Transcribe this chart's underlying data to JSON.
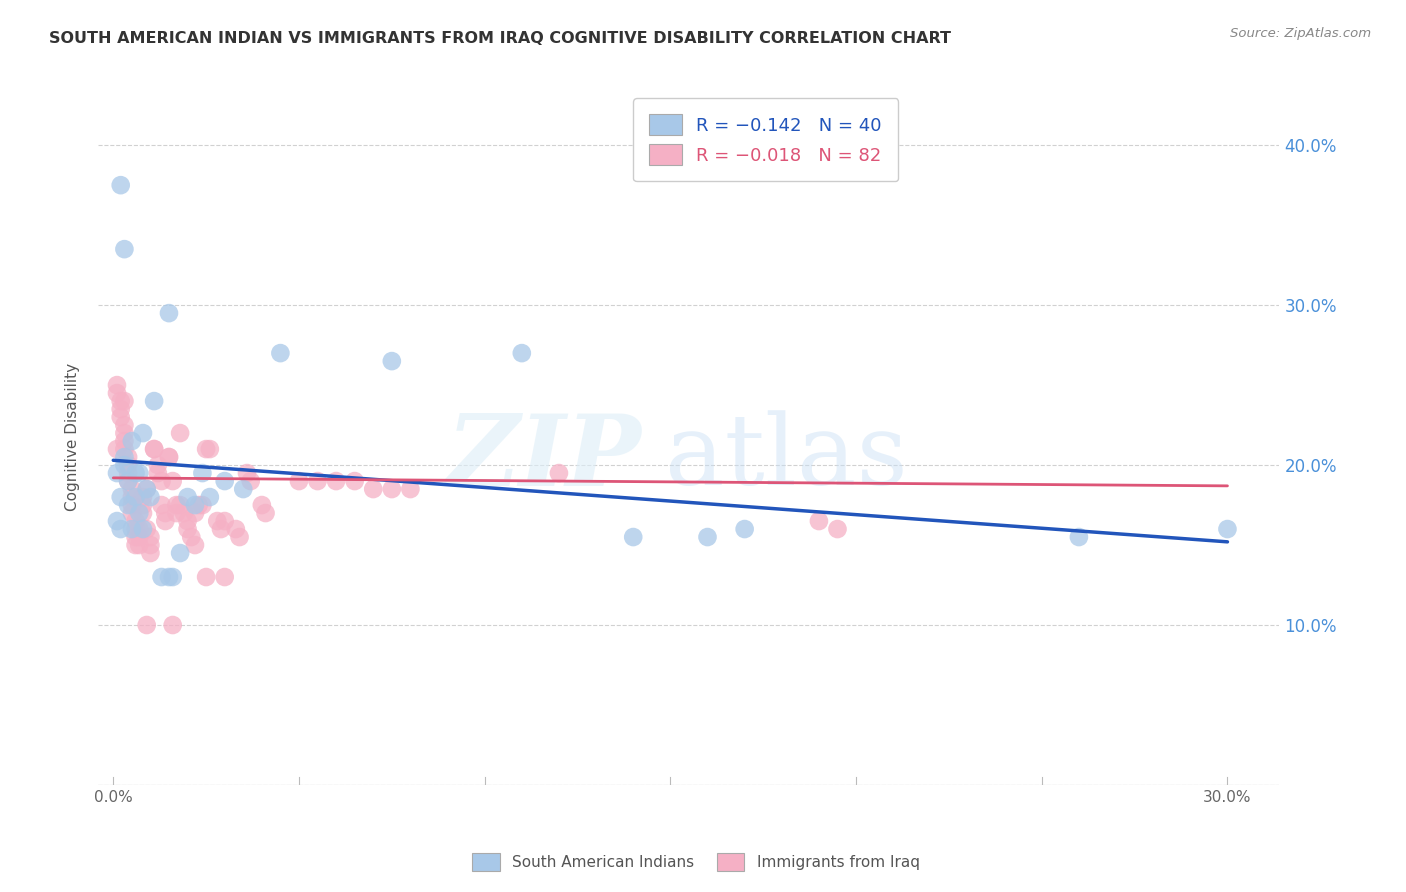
{
  "title": "SOUTH AMERICAN INDIAN VS IMMIGRANTS FROM IRAQ COGNITIVE DISABILITY CORRELATION CHART",
  "source": "Source: ZipAtlas.com",
  "xlim": [
    -0.004,
    0.314
  ],
  "ylim": [
    0.0,
    0.435
  ],
  "ylabel": "Cognitive Disability",
  "blue_color": "#a8c8e8",
  "pink_color": "#f5b0c5",
  "blue_line_color": "#2255bb",
  "pink_line_color": "#dd5577",
  "legend1_label": "R = −0.142   N = 40",
  "legend2_label": "R = −0.018   N = 82",
  "legend_xlabel": "South American Indians",
  "legend_ylabel": "Immigrants from Iraq",
  "blue_scatter_x": [
    0.001,
    0.002,
    0.002,
    0.003,
    0.003,
    0.004,
    0.004,
    0.005,
    0.005,
    0.006,
    0.006,
    0.007,
    0.007,
    0.008,
    0.008,
    0.009,
    0.01,
    0.011,
    0.013,
    0.015,
    0.016,
    0.018,
    0.02,
    0.022,
    0.024,
    0.026,
    0.03,
    0.035,
    0.015,
    0.003,
    0.002,
    0.001,
    0.045,
    0.075,
    0.11,
    0.14,
    0.16,
    0.17,
    0.26,
    0.3
  ],
  "blue_scatter_y": [
    0.195,
    0.18,
    0.375,
    0.205,
    0.335,
    0.19,
    0.175,
    0.215,
    0.16,
    0.18,
    0.195,
    0.17,
    0.195,
    0.16,
    0.22,
    0.185,
    0.18,
    0.24,
    0.13,
    0.295,
    0.13,
    0.145,
    0.18,
    0.175,
    0.195,
    0.18,
    0.19,
    0.185,
    0.13,
    0.2,
    0.16,
    0.165,
    0.27,
    0.265,
    0.27,
    0.155,
    0.155,
    0.16,
    0.155,
    0.16
  ],
  "pink_scatter_x": [
    0.001,
    0.001,
    0.001,
    0.002,
    0.002,
    0.002,
    0.003,
    0.003,
    0.003,
    0.003,
    0.004,
    0.004,
    0.004,
    0.004,
    0.005,
    0.005,
    0.005,
    0.005,
    0.006,
    0.006,
    0.006,
    0.006,
    0.007,
    0.007,
    0.007,
    0.008,
    0.008,
    0.008,
    0.009,
    0.009,
    0.01,
    0.01,
    0.01,
    0.011,
    0.011,
    0.012,
    0.012,
    0.013,
    0.013,
    0.014,
    0.014,
    0.015,
    0.015,
    0.016,
    0.017,
    0.017,
    0.018,
    0.018,
    0.019,
    0.02,
    0.02,
    0.021,
    0.022,
    0.022,
    0.023,
    0.024,
    0.025,
    0.026,
    0.028,
    0.029,
    0.03,
    0.033,
    0.034,
    0.036,
    0.037,
    0.04,
    0.041,
    0.05,
    0.055,
    0.06,
    0.065,
    0.07,
    0.075,
    0.08,
    0.003,
    0.009,
    0.016,
    0.025,
    0.03,
    0.12,
    0.19,
    0.195
  ],
  "pink_scatter_y": [
    0.25,
    0.245,
    0.21,
    0.24,
    0.235,
    0.23,
    0.225,
    0.22,
    0.215,
    0.21,
    0.205,
    0.2,
    0.195,
    0.19,
    0.185,
    0.18,
    0.175,
    0.17,
    0.165,
    0.16,
    0.155,
    0.15,
    0.15,
    0.155,
    0.16,
    0.17,
    0.175,
    0.18,
    0.185,
    0.16,
    0.155,
    0.15,
    0.145,
    0.21,
    0.21,
    0.2,
    0.195,
    0.19,
    0.175,
    0.17,
    0.165,
    0.205,
    0.205,
    0.19,
    0.175,
    0.17,
    0.22,
    0.175,
    0.17,
    0.165,
    0.16,
    0.155,
    0.15,
    0.17,
    0.175,
    0.175,
    0.21,
    0.21,
    0.165,
    0.16,
    0.165,
    0.16,
    0.155,
    0.195,
    0.19,
    0.175,
    0.17,
    0.19,
    0.19,
    0.19,
    0.19,
    0.185,
    0.185,
    0.185,
    0.24,
    0.1,
    0.1,
    0.13,
    0.13,
    0.195,
    0.165,
    0.16
  ],
  "blue_trend_x": [
    0.0,
    0.3
  ],
  "blue_trend_y": [
    0.203,
    0.152
  ],
  "pink_trend_x": [
    0.0,
    0.3
  ],
  "pink_trend_y": [
    0.192,
    0.187
  ],
  "grid_color": "#cccccc",
  "ytick_right_labels": [
    "",
    "10.0%",
    "20.0%",
    "30.0%",
    "40.0%"
  ],
  "ytick_vals": [
    0.0,
    0.1,
    0.2,
    0.3,
    0.4
  ],
  "xtick_vals": [
    0.0,
    0.05,
    0.1,
    0.15,
    0.2,
    0.25,
    0.3
  ],
  "xtick_labels": [
    "0.0%",
    "",
    "",
    "",
    "",
    "",
    "30.0%"
  ]
}
